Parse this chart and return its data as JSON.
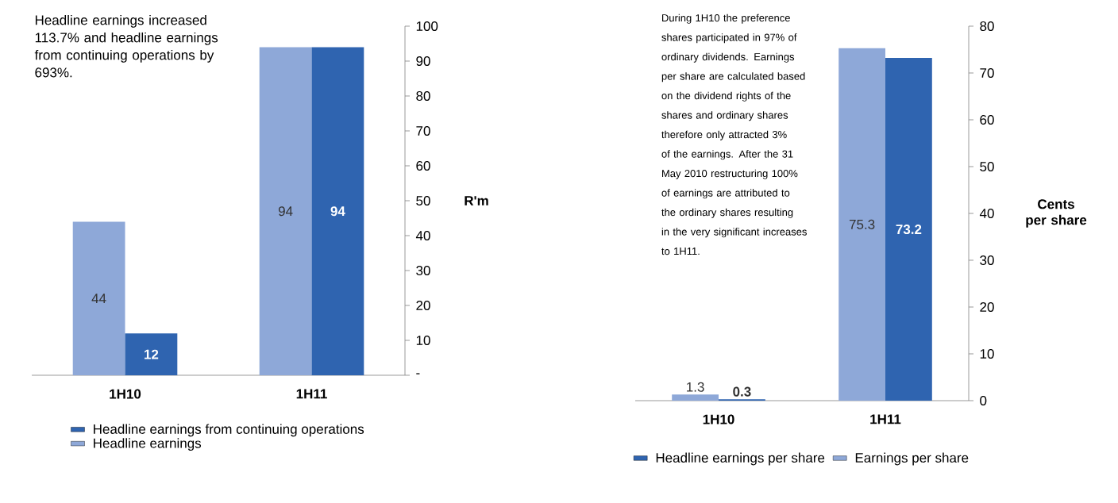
{
  "chart_data": [
    {
      "type": "bar",
      "categories": [
        "1H10",
        "1H11"
      ],
      "series": [
        {
          "name": "Headline earnings",
          "color": "#8ea8d8",
          "values": [
            44,
            94
          ]
        },
        {
          "name": "Headline earnings from continuing operations",
          "color": "#2f64b0",
          "values": [
            12,
            94
          ]
        }
      ],
      "ylim": [
        0,
        100
      ],
      "yticks": [
        {
          "value": 0,
          "label": "-"
        },
        10,
        20,
        30,
        40,
        50,
        60,
        70,
        80,
        90,
        100
      ],
      "ylabel": "R'm",
      "data_labels": true,
      "legend": "bottom",
      "grid": false,
      "annotations": [
        "Headline earnings increased 113.7% and headline earnings from continuing operations by 693%."
      ]
    },
    {
      "type": "bar",
      "categories": [
        "1H10",
        "1H11"
      ],
      "series": [
        {
          "name": "Earnings per share",
          "color": "#8ea8d8",
          "values": [
            1.3,
            75.3
          ]
        },
        {
          "name": "Headline earnings per share",
          "color": "#2f64b0",
          "values": [
            0.3,
            73.2
          ]
        }
      ],
      "ylim": [
        0,
        80
      ],
      "yticks": [
        0,
        10,
        20,
        30,
        40,
        50,
        60,
        70,
        80
      ],
      "ylabel": "Cents per share",
      "data_labels": true,
      "legend": "bottom",
      "grid": false,
      "annotations": [
        "During 1H10 the preference shares participated in 97% of ordinary dividends. Earnings per share are calculated based on the dividend rights of the shares and ordinary shares therefore only attracted 3% of the earnings. After the 31 May 2010 restructuring 100% of earnings are attributed to the ordinary shares resulting in the very significant increases to 1H11."
      ]
    }
  ]
}
